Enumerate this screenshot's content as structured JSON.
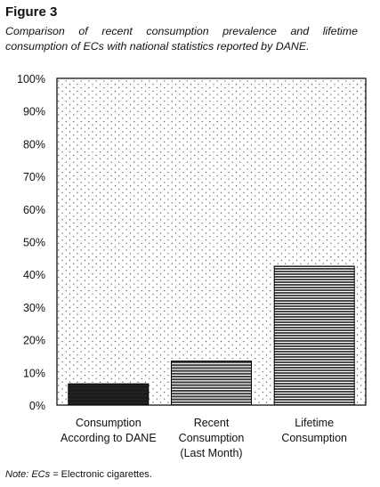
{
  "figure_label": "Figure 3",
  "caption": "Comparison of recent consumption prevalence and lifetime consumption of ECs with national statistics reported by DANE.",
  "note": {
    "prefix": "Note: ECs",
    "text": " = Electronic cigarettes."
  },
  "chart_data": {
    "type": "bar",
    "title": "",
    "xlabel": "",
    "ylabel": "",
    "ylim": [
      0,
      100
    ],
    "yticks": [
      "0%",
      "10%",
      "20%",
      "30%",
      "40%",
      "50%",
      "60%",
      "70%",
      "80%",
      "90%",
      "100%"
    ],
    "categories": [
      [
        "Consumption",
        "According to DANE"
      ],
      [
        "Recent",
        "Consumption",
        "(Last Month)"
      ],
      [
        "Lifetime",
        "Consumption"
      ]
    ],
    "values": [
      6.5,
      13.5,
      42.5
    ],
    "bar_patterns": [
      "solid-dark",
      "horizontal-lines",
      "horizontal-lines-fine"
    ],
    "background_pattern": "dotted",
    "grid": false,
    "legend": "none"
  }
}
